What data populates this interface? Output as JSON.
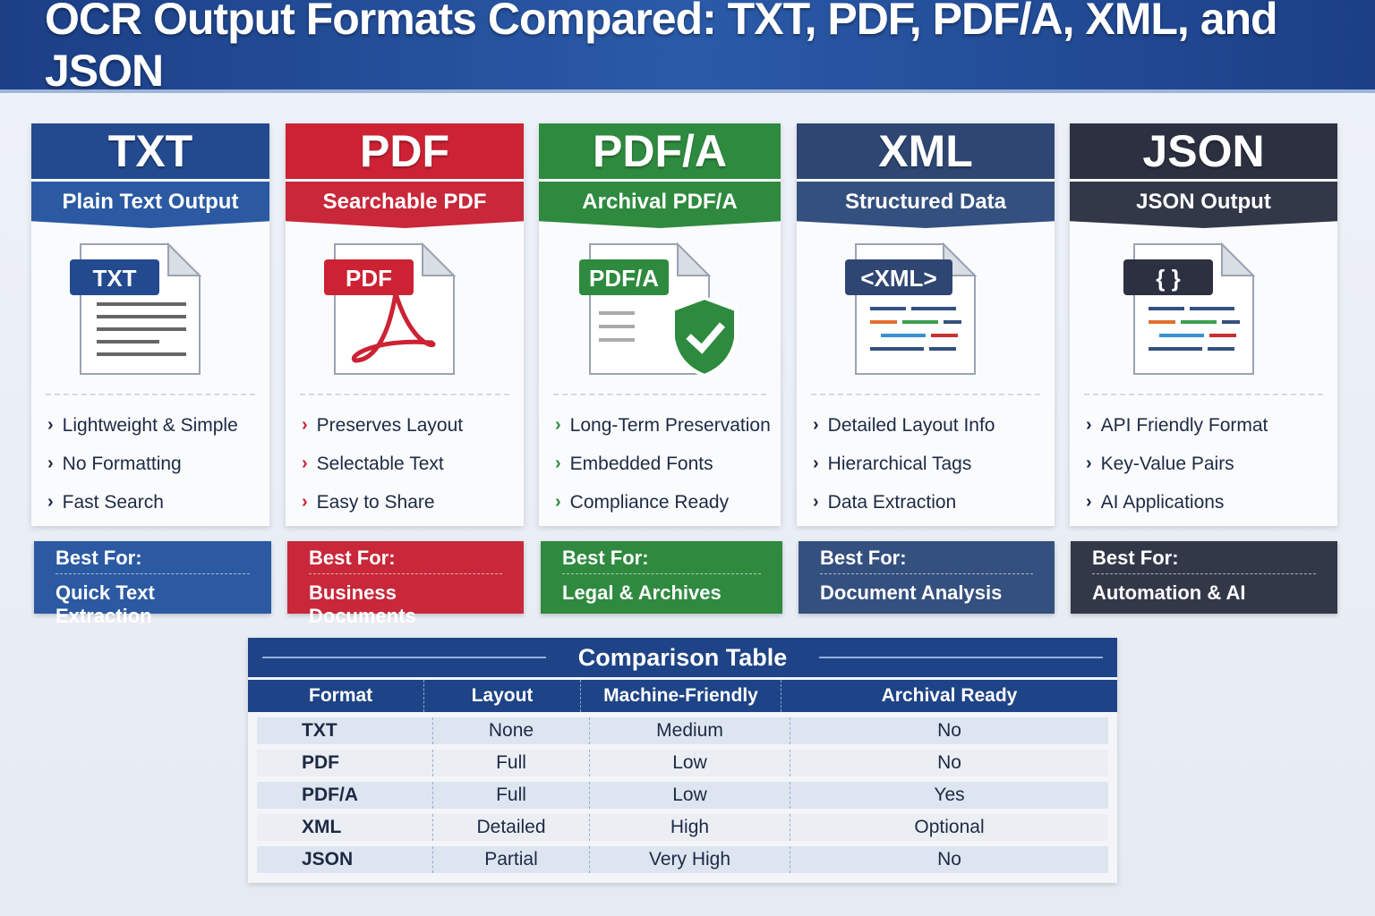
{
  "title": "OCR Output Formats Compared: TXT, PDF, PDF/A, XML, and JSON",
  "cards": [
    {
      "name": "TXT",
      "subtitle": "Plain Text Output",
      "icon": "txt-document-icon",
      "icon_label": "TXT",
      "color": "#234a8e",
      "sub_color": "#2b5aa3",
      "features": [
        "Lightweight & Simple",
        "No Formatting",
        "Fast Search"
      ],
      "best_for_label": "Best For:",
      "best_for": "Quick Text Extraction"
    },
    {
      "name": "PDF",
      "subtitle": "Searchable PDF",
      "icon": "pdf-document-icon",
      "icon_label": "PDF",
      "color": "#cc2233",
      "sub_color": "#c8283a",
      "features": [
        "Preserves Layout",
        "Selectable Text",
        "Easy to Share"
      ],
      "best_for_label": "Best For:",
      "best_for": "Business Documents"
    },
    {
      "name": "PDF/A",
      "subtitle": "Archival PDF/A",
      "icon": "pdfa-shield-document-icon",
      "icon_label": "PDF/A",
      "color": "#2e8a3e",
      "sub_color": "#2f8a3f",
      "features": [
        "Long-Term Preservation",
        "Embedded Fonts",
        "Compliance Ready"
      ],
      "best_for_label": "Best For:",
      "best_for": "Legal & Archives"
    },
    {
      "name": "XML",
      "subtitle": "Structured Data",
      "icon": "xml-document-icon",
      "icon_label": "<XML>",
      "color": "#2f4673",
      "sub_color": "#34507f",
      "features": [
        "Detailed Layout Info",
        "Hierarchical Tags",
        "Data Extraction"
      ],
      "best_for_label": "Best For:",
      "best_for": "Document Analysis"
    },
    {
      "name": "JSON",
      "subtitle": "JSON Output",
      "icon": "json-braces-document-icon",
      "icon_label": "{ }",
      "color": "#2c3040",
      "sub_color": "#333849",
      "features": [
        "API Friendly Format",
        "Key-Value Pairs",
        "AI Applications"
      ],
      "best_for_label": "Best For:",
      "best_for": "Automation & AI"
    }
  ],
  "table": {
    "title": "Comparison Table",
    "headers": [
      "Format",
      "Layout",
      "Machine-Friendly",
      "Archival Ready"
    ],
    "rows": [
      [
        "TXT",
        "None",
        "Medium",
        "No"
      ],
      [
        "PDF",
        "Full",
        "Low",
        "No"
      ],
      [
        "PDF/A",
        "Full",
        "Low",
        "Yes"
      ],
      [
        "XML",
        "Detailed",
        "High",
        "Optional"
      ],
      [
        "JSON",
        "Partial",
        "Very High",
        "No"
      ]
    ]
  }
}
